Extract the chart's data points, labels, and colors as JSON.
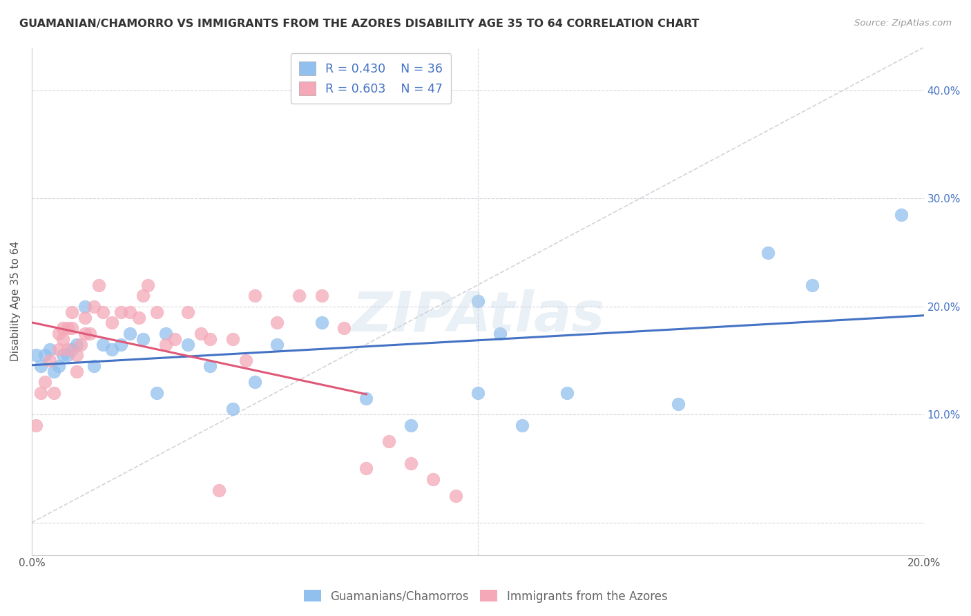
{
  "title": "GUAMANIAN/CHAMORRO VS IMMIGRANTS FROM THE AZORES DISABILITY AGE 35 TO 64 CORRELATION CHART",
  "source": "Source: ZipAtlas.com",
  "ylabel": "Disability Age 35 to 64",
  "xmin": 0.0,
  "xmax": 0.2,
  "ymin": -0.03,
  "ymax": 0.44,
  "blue_R": 0.43,
  "blue_N": 36,
  "pink_R": 0.603,
  "pink_N": 47,
  "blue_color": "#92C0EE",
  "pink_color": "#F4A8B8",
  "blue_line_color": "#4472C4",
  "pink_line_color": "#E05878",
  "diagonal_color": "#C8C8D0",
  "grid_color": "#D8D8E0",
  "legend_label_blue": "Guamanians/Chamorros",
  "legend_label_pink": "Immigrants from the Azores",
  "watermark": "ZIPAtlas",
  "blue_x": [
    0.001,
    0.002,
    0.003,
    0.004,
    0.005,
    0.006,
    0.007,
    0.008,
    0.009,
    0.01,
    0.012,
    0.014,
    0.016,
    0.018,
    0.02,
    0.022,
    0.025,
    0.028,
    0.03,
    0.035,
    0.04,
    0.045,
    0.05,
    0.055,
    0.065,
    0.075,
    0.085,
    0.1,
    0.1,
    0.105,
    0.11,
    0.12,
    0.145,
    0.165,
    0.175,
    0.195
  ],
  "blue_y": [
    0.155,
    0.145,
    0.155,
    0.16,
    0.14,
    0.145,
    0.155,
    0.155,
    0.16,
    0.165,
    0.2,
    0.145,
    0.165,
    0.16,
    0.165,
    0.175,
    0.17,
    0.12,
    0.175,
    0.165,
    0.145,
    0.105,
    0.13,
    0.165,
    0.185,
    0.115,
    0.09,
    0.205,
    0.12,
    0.175,
    0.09,
    0.12,
    0.11,
    0.25,
    0.22,
    0.285
  ],
  "pink_x": [
    0.001,
    0.002,
    0.003,
    0.004,
    0.005,
    0.006,
    0.006,
    0.007,
    0.007,
    0.008,
    0.008,
    0.009,
    0.009,
    0.01,
    0.01,
    0.011,
    0.012,
    0.012,
    0.013,
    0.014,
    0.015,
    0.016,
    0.018,
    0.02,
    0.022,
    0.024,
    0.025,
    0.026,
    0.028,
    0.03,
    0.032,
    0.035,
    0.038,
    0.04,
    0.042,
    0.045,
    0.048,
    0.05,
    0.055,
    0.06,
    0.065,
    0.07,
    0.075,
    0.08,
    0.085,
    0.09,
    0.095
  ],
  "pink_y": [
    0.09,
    0.12,
    0.13,
    0.15,
    0.12,
    0.16,
    0.175,
    0.17,
    0.18,
    0.16,
    0.18,
    0.18,
    0.195,
    0.14,
    0.155,
    0.165,
    0.175,
    0.19,
    0.175,
    0.2,
    0.22,
    0.195,
    0.185,
    0.195,
    0.195,
    0.19,
    0.21,
    0.22,
    0.195,
    0.165,
    0.17,
    0.195,
    0.175,
    0.17,
    0.03,
    0.17,
    0.15,
    0.21,
    0.185,
    0.21,
    0.21,
    0.18,
    0.05,
    0.075,
    0.055,
    0.04,
    0.025
  ]
}
